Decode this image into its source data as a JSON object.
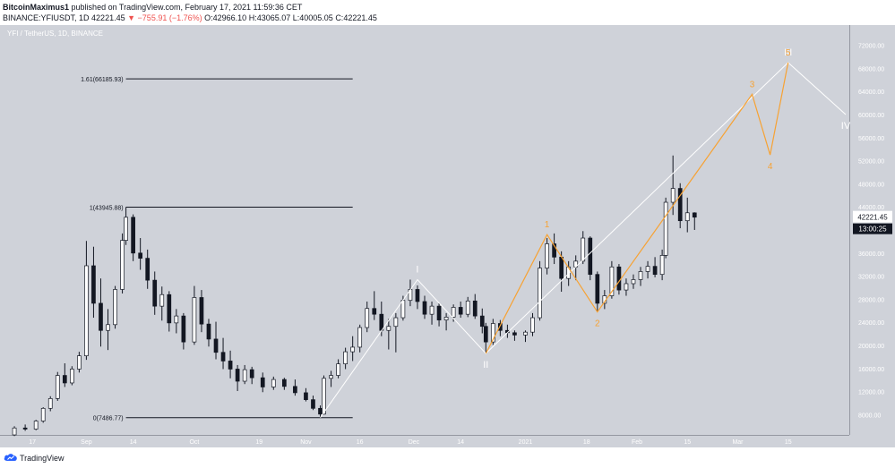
{
  "header": {
    "author": "BitcoinMaximus1",
    "published_text": "published on TradingView.com, February 17, 2021 11:59:36 CET",
    "symbol": "BINANCE:YFIUSDT, 1D",
    "change_value": "42221.45",
    "change_arrow": "▼",
    "change_text": "−755.91 (−1.76%)",
    "ohlc": {
      "o": "O:42966.10",
      "h": "H:43065.07",
      "l": "L:40005.05",
      "c": "C:42221.45"
    }
  },
  "symbol_title": "YFI / TetherUS, 1D, BINANCE",
  "footer": {
    "brand": "TradingView"
  },
  "colors": {
    "background": "#cfd2d9",
    "candle_up": "#ffffff",
    "candle_down": "#131722",
    "orange_wave": "#f7a233",
    "white_wave": "#ffffff",
    "fib_line": "#131722",
    "last_price_bg": "#ffffff",
    "countdown_bg": "#131722"
  },
  "chart_data": {
    "type": "candlestick",
    "symbol": "YFI / TetherUS",
    "interval": "1D",
    "price_axis": {
      "ticks": [
        8000,
        12000,
        16000,
        20000,
        24000,
        28000,
        32000,
        36000,
        40000,
        44000,
        48000,
        52000,
        56000,
        60000,
        64000,
        68000,
        72000
      ],
      "tick_labels": [
        "8000.00",
        "12000.00",
        "16000.00",
        "20000.00",
        "24000.00",
        "28000.00",
        "32000.00",
        "36000.00",
        "40000.00",
        "44000.00",
        "48000.00",
        "52000.00",
        "56000.00",
        "60000.00",
        "64000.00",
        "68000.00",
        "72000.00"
      ],
      "range": [
        4500,
        75500
      ],
      "last_price": "42221.45",
      "countdown": "13:00:25"
    },
    "time_axis": {
      "labels": [
        {
          "date": "2020-08-17",
          "label": "17"
        },
        {
          "date": "2020-09-01",
          "label": "Sep"
        },
        {
          "date": "2020-09-14",
          "label": "14"
        },
        {
          "date": "2020-10-01",
          "label": "Oct"
        },
        {
          "date": "2020-10-19",
          "label": "19"
        },
        {
          "date": "2020-11-01",
          "label": "Nov"
        },
        {
          "date": "2020-11-16",
          "label": "16"
        },
        {
          "date": "2020-12-01",
          "label": "Dec"
        },
        {
          "date": "2020-12-14",
          "label": "14"
        },
        {
          "date": "2021-01-01",
          "label": "2021"
        },
        {
          "date": "2021-01-18",
          "label": "18"
        },
        {
          "date": "2021-02-01",
          "label": "Feb"
        },
        {
          "date": "2021-02-15",
          "label": "15"
        },
        {
          "date": "2021-03-01",
          "label": "Mar"
        },
        {
          "date": "2021-03-15",
          "label": "15"
        }
      ],
      "range": [
        "2020-08-08",
        "2021-04-01"
      ]
    },
    "candles": [
      {
        "d": "2020-08-12",
        "o": 4500,
        "h": 6000,
        "l": 4300,
        "c": 5700
      },
      {
        "d": "2020-08-15",
        "o": 5700,
        "h": 6300,
        "l": 5200,
        "c": 5500
      },
      {
        "d": "2020-08-18",
        "o": 5500,
        "h": 7100,
        "l": 5300,
        "c": 6900
      },
      {
        "d": "2020-08-20",
        "o": 6900,
        "h": 9300,
        "l": 6600,
        "c": 9100
      },
      {
        "d": "2020-08-22",
        "o": 9100,
        "h": 11200,
        "l": 8600,
        "c": 10800
      },
      {
        "d": "2020-08-24",
        "o": 10800,
        "h": 15400,
        "l": 10400,
        "c": 14800
      },
      {
        "d": "2020-08-26",
        "o": 14800,
        "h": 16900,
        "l": 12800,
        "c": 13500
      },
      {
        "d": "2020-08-28",
        "o": 13500,
        "h": 16400,
        "l": 13100,
        "c": 15900
      },
      {
        "d": "2020-08-30",
        "o": 15900,
        "h": 18900,
        "l": 15300,
        "c": 18200
      },
      {
        "d": "2020-09-01",
        "o": 18200,
        "h": 38100,
        "l": 17500,
        "c": 33800
      },
      {
        "d": "2020-09-03",
        "o": 33800,
        "h": 37100,
        "l": 24800,
        "c": 27300
      },
      {
        "d": "2020-09-05",
        "o": 27300,
        "h": 31600,
        "l": 19800,
        "c": 22600
      },
      {
        "d": "2020-09-07",
        "o": 22600,
        "h": 26300,
        "l": 19200,
        "c": 23600
      },
      {
        "d": "2020-09-09",
        "o": 23600,
        "h": 30300,
        "l": 22900,
        "c": 29700
      },
      {
        "d": "2020-09-11",
        "o": 29700,
        "h": 39400,
        "l": 29000,
        "c": 38200
      },
      {
        "d": "2020-09-12",
        "o": 38200,
        "h": 43946,
        "l": 37400,
        "c": 42200
      },
      {
        "d": "2020-09-14",
        "o": 42200,
        "h": 42700,
        "l": 34600,
        "c": 36000
      },
      {
        "d": "2020-09-16",
        "o": 36000,
        "h": 38600,
        "l": 33100,
        "c": 35100
      },
      {
        "d": "2020-09-18",
        "o": 35100,
        "h": 36600,
        "l": 29800,
        "c": 31300
      },
      {
        "d": "2020-09-20",
        "o": 31300,
        "h": 32800,
        "l": 25300,
        "c": 26800
      },
      {
        "d": "2020-09-22",
        "o": 26800,
        "h": 30200,
        "l": 24300,
        "c": 28800
      },
      {
        "d": "2020-09-24",
        "o": 28800,
        "h": 29400,
        "l": 22400,
        "c": 23900
      },
      {
        "d": "2020-09-26",
        "o": 23900,
        "h": 26300,
        "l": 22100,
        "c": 25100
      },
      {
        "d": "2020-09-28",
        "o": 25100,
        "h": 25600,
        "l": 19300,
        "c": 20600
      },
      {
        "d": "2020-10-01",
        "o": 20600,
        "h": 30300,
        "l": 20100,
        "c": 28300
      },
      {
        "d": "2020-10-03",
        "o": 28300,
        "h": 29600,
        "l": 22300,
        "c": 23700
      },
      {
        "d": "2020-10-05",
        "o": 23700,
        "h": 24600,
        "l": 19800,
        "c": 21100
      },
      {
        "d": "2020-10-07",
        "o": 21100,
        "h": 24100,
        "l": 17600,
        "c": 18800
      },
      {
        "d": "2020-10-09",
        "o": 18800,
        "h": 21300,
        "l": 15900,
        "c": 17300
      },
      {
        "d": "2020-10-11",
        "o": 17300,
        "h": 19100,
        "l": 14300,
        "c": 15900
      },
      {
        "d": "2020-10-13",
        "o": 15900,
        "h": 16600,
        "l": 12100,
        "c": 13800
      },
      {
        "d": "2020-10-15",
        "o": 13800,
        "h": 16600,
        "l": 13300,
        "c": 15800
      },
      {
        "d": "2020-10-17",
        "o": 15800,
        "h": 16300,
        "l": 13300,
        "c": 14400
      },
      {
        "d": "2020-10-20",
        "o": 14400,
        "h": 15300,
        "l": 11900,
        "c": 12800
      },
      {
        "d": "2020-10-23",
        "o": 12800,
        "h": 14600,
        "l": 12300,
        "c": 14100
      },
      {
        "d": "2020-10-26",
        "o": 14100,
        "h": 14400,
        "l": 12300,
        "c": 12900
      },
      {
        "d": "2020-10-29",
        "o": 12900,
        "h": 14100,
        "l": 11300,
        "c": 11800
      },
      {
        "d": "2020-11-01",
        "o": 11800,
        "h": 12600,
        "l": 10300,
        "c": 10600
      },
      {
        "d": "2020-11-03",
        "o": 10600,
        "h": 11300,
        "l": 8800,
        "c": 9100
      },
      {
        "d": "2020-11-05",
        "o": 9100,
        "h": 9600,
        "l": 7487,
        "c": 8100
      },
      {
        "d": "2020-11-06",
        "o": 8100,
        "h": 14800,
        "l": 8000,
        "c": 14300
      },
      {
        "d": "2020-11-08",
        "o": 14300,
        "h": 15600,
        "l": 12800,
        "c": 14800
      },
      {
        "d": "2020-11-10",
        "o": 14800,
        "h": 17600,
        "l": 14300,
        "c": 16800
      },
      {
        "d": "2020-11-12",
        "o": 16800,
        "h": 19600,
        "l": 15900,
        "c": 18900
      },
      {
        "d": "2020-11-14",
        "o": 18900,
        "h": 21600,
        "l": 17300,
        "c": 19700
      },
      {
        "d": "2020-11-16",
        "o": 19700,
        "h": 23600,
        "l": 18800,
        "c": 23100
      },
      {
        "d": "2020-11-18",
        "o": 23100,
        "h": 27600,
        "l": 22300,
        "c": 26400
      },
      {
        "d": "2020-11-20",
        "o": 26400,
        "h": 29400,
        "l": 24400,
        "c": 25400
      },
      {
        "d": "2020-11-22",
        "o": 25400,
        "h": 27600,
        "l": 21600,
        "c": 22600
      },
      {
        "d": "2020-11-24",
        "o": 22600,
        "h": 24600,
        "l": 19300,
        "c": 23300
      },
      {
        "d": "2020-11-26",
        "o": 23300,
        "h": 25600,
        "l": 18800,
        "c": 24800
      },
      {
        "d": "2020-11-28",
        "o": 24800,
        "h": 28600,
        "l": 24300,
        "c": 27800
      },
      {
        "d": "2020-11-30",
        "o": 27800,
        "h": 31400,
        "l": 26800,
        "c": 29700
      },
      {
        "d": "2020-12-02",
        "o": 29700,
        "h": 30400,
        "l": 26300,
        "c": 27600
      },
      {
        "d": "2020-12-04",
        "o": 27600,
        "h": 28600,
        "l": 24600,
        "c": 25400
      },
      {
        "d": "2020-12-06",
        "o": 25400,
        "h": 27600,
        "l": 23600,
        "c": 26800
      },
      {
        "d": "2020-12-08",
        "o": 26800,
        "h": 27300,
        "l": 23300,
        "c": 24400
      },
      {
        "d": "2020-12-10",
        "o": 24400,
        "h": 25600,
        "l": 22600,
        "c": 24900
      },
      {
        "d": "2020-12-12",
        "o": 24900,
        "h": 27100,
        "l": 24100,
        "c": 26600
      },
      {
        "d": "2020-12-14",
        "o": 26600,
        "h": 27600,
        "l": 24800,
        "c": 25400
      },
      {
        "d": "2020-12-16",
        "o": 25400,
        "h": 28400,
        "l": 24900,
        "c": 27700
      },
      {
        "d": "2020-12-18",
        "o": 27700,
        "h": 28900,
        "l": 24600,
        "c": 25100
      },
      {
        "d": "2020-12-20",
        "o": 25100,
        "h": 26400,
        "l": 22100,
        "c": 23300
      },
      {
        "d": "2020-12-21",
        "o": 23300,
        "h": 23900,
        "l": 18600,
        "c": 20600
      },
      {
        "d": "2020-12-23",
        "o": 20600,
        "h": 24600,
        "l": 20100,
        "c": 23800
      },
      {
        "d": "2020-12-25",
        "o": 23800,
        "h": 24400,
        "l": 21600,
        "c": 22600
      },
      {
        "d": "2020-12-27",
        "o": 22600,
        "h": 23600,
        "l": 21300,
        "c": 22200
      },
      {
        "d": "2020-12-29",
        "o": 22200,
        "h": 22600,
        "l": 20800,
        "c": 21800
      },
      {
        "d": "2021-01-01",
        "o": 21800,
        "h": 22600,
        "l": 20600,
        "c": 22300
      },
      {
        "d": "2021-01-03",
        "o": 22300,
        "h": 25600,
        "l": 21600,
        "c": 24800
      },
      {
        "d": "2021-01-05",
        "o": 24800,
        "h": 34600,
        "l": 24300,
        "c": 33400
      },
      {
        "d": "2021-01-07",
        "o": 33400,
        "h": 38600,
        "l": 32300,
        "c": 37600
      },
      {
        "d": "2021-01-09",
        "o": 37600,
        "h": 39400,
        "l": 34100,
        "c": 35300
      },
      {
        "d": "2021-01-11",
        "o": 35300,
        "h": 36300,
        "l": 29300,
        "c": 31600
      },
      {
        "d": "2021-01-13",
        "o": 31600,
        "h": 34600,
        "l": 30300,
        "c": 33600
      },
      {
        "d": "2021-01-15",
        "o": 33600,
        "h": 35600,
        "l": 31300,
        "c": 34600
      },
      {
        "d": "2021-01-17",
        "o": 34600,
        "h": 39800,
        "l": 34100,
        "c": 38600
      },
      {
        "d": "2021-01-19",
        "o": 38600,
        "h": 38900,
        "l": 31300,
        "c": 32300
      },
      {
        "d": "2021-01-21",
        "o": 32300,
        "h": 32800,
        "l": 25800,
        "c": 27300
      },
      {
        "d": "2021-01-23",
        "o": 27300,
        "h": 29600,
        "l": 26300,
        "c": 28600
      },
      {
        "d": "2021-01-25",
        "o": 28600,
        "h": 34600,
        "l": 28100,
        "c": 33600
      },
      {
        "d": "2021-01-27",
        "o": 33600,
        "h": 34100,
        "l": 28800,
        "c": 29600
      },
      {
        "d": "2021-01-29",
        "o": 29600,
        "h": 31600,
        "l": 28600,
        "c": 30700
      },
      {
        "d": "2021-01-31",
        "o": 30700,
        "h": 32300,
        "l": 29800,
        "c": 31400
      },
      {
        "d": "2021-02-02",
        "o": 31400,
        "h": 33600,
        "l": 30300,
        "c": 32800
      },
      {
        "d": "2021-02-04",
        "o": 32800,
        "h": 34600,
        "l": 31600,
        "c": 33700
      },
      {
        "d": "2021-02-06",
        "o": 33700,
        "h": 35300,
        "l": 31800,
        "c": 32300
      },
      {
        "d": "2021-02-08",
        "o": 32300,
        "h": 36600,
        "l": 31300,
        "c": 35600
      },
      {
        "d": "2021-02-09",
        "o": 35600,
        "h": 45600,
        "l": 35100,
        "c": 44800
      },
      {
        "d": "2021-02-11",
        "o": 44800,
        "h": 52900,
        "l": 42600,
        "c": 47200
      },
      {
        "d": "2021-02-13",
        "o": 47200,
        "h": 48100,
        "l": 40300,
        "c": 41600
      },
      {
        "d": "2021-02-15",
        "o": 41600,
        "h": 45600,
        "l": 39600,
        "c": 42978
      },
      {
        "d": "2021-02-17",
        "o": 42966,
        "h": 43065,
        "l": 40005,
        "c": 42221
      }
    ],
    "fib_levels": [
      {
        "label": "1.61(66185.93)",
        "price": 66185.93,
        "from": "2020-09-12",
        "to": "2020-11-14"
      },
      {
        "label": "1(43945.88)",
        "price": 43945.88,
        "from": "2020-09-12",
        "to": "2020-11-14"
      },
      {
        "label": "0(7486.77)",
        "price": 7486.77,
        "from": "2020-09-12",
        "to": "2020-11-14"
      }
    ],
    "white_wave": [
      {
        "d": "2020-11-05",
        "p": 7487
      },
      {
        "d": "2020-12-02",
        "p": 31400,
        "label": "I"
      },
      {
        "d": "2020-12-21",
        "p": 18600,
        "label": "II"
      },
      {
        "d": "2021-03-15",
        "p": 69000,
        "label": "III"
      },
      {
        "d": "2021-03-31",
        "p": 60000,
        "label": "IV"
      }
    ],
    "orange_wave": [
      {
        "d": "2020-12-21",
        "p": 18600
      },
      {
        "d": "2021-01-07",
        "p": 39200,
        "label": "1"
      },
      {
        "d": "2021-01-21",
        "p": 25800,
        "label": "2"
      },
      {
        "d": "2021-03-05",
        "p": 63500,
        "label": "3"
      },
      {
        "d": "2021-03-10",
        "p": 53000,
        "label": "4"
      },
      {
        "d": "2021-03-15",
        "p": 69000,
        "label": "5"
      }
    ]
  }
}
